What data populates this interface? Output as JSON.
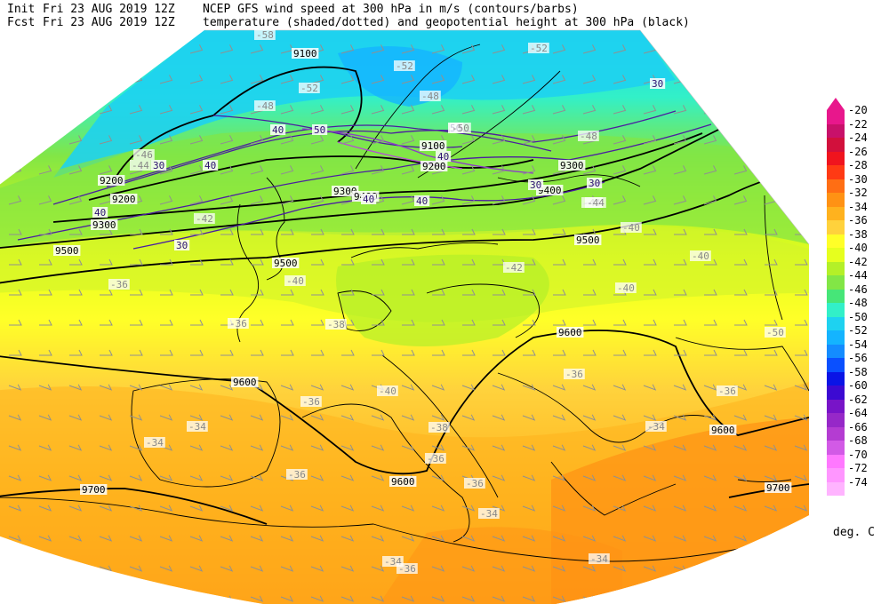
{
  "header": {
    "init_label": "Init",
    "init_time": "Fri 23 AUG 2019 12Z",
    "fcst_label": "Fcst",
    "fcst_time": "Fri 23 AUG 2019 12Z",
    "title_line1": "NCEP GFS wind speed at 300 hPa in m/s (contours/barbs)",
    "title_line2": "temperature (shaded/dotted) and geopotential height at 300 hPa (black)"
  },
  "legend": {
    "units": "deg. C",
    "items": [
      {
        "label": "-20",
        "color": "#e8178c"
      },
      {
        "label": "-22",
        "color": "#c8116a"
      },
      {
        "label": "-24",
        "color": "#d2103c"
      },
      {
        "label": "-26",
        "color": "#f0141e"
      },
      {
        "label": "-28",
        "color": "#ff3a14"
      },
      {
        "label": "-30",
        "color": "#ff6e14"
      },
      {
        "label": "-32",
        "color": "#ff9214"
      },
      {
        "label": "-34",
        "color": "#ffb21e"
      },
      {
        "label": "-36",
        "color": "#ffd23c"
      },
      {
        "label": "-38",
        "color": "#ffff28"
      },
      {
        "label": "-40",
        "color": "#e6ff1e"
      },
      {
        "label": "-42",
        "color": "#b4f028"
      },
      {
        "label": "-44",
        "color": "#82e646"
      },
      {
        "label": "-46",
        "color": "#46e678"
      },
      {
        "label": "-48",
        "color": "#32f0c8"
      },
      {
        "label": "-50",
        "color": "#1ed2f0"
      },
      {
        "label": "-52",
        "color": "#14b4ff"
      },
      {
        "label": "-54",
        "color": "#148cff"
      },
      {
        "label": "-56",
        "color": "#0a50ff"
      },
      {
        "label": "-58",
        "color": "#0a14e6"
      },
      {
        "label": "-60",
        "color": "#3c0ad2"
      },
      {
        "label": "-62",
        "color": "#7814c8"
      },
      {
        "label": "-64",
        "color": "#9628c8"
      },
      {
        "label": "-66",
        "color": "#b43cd2"
      },
      {
        "label": "-68",
        "color": "#d25ae6"
      },
      {
        "label": "-70",
        "color": "#ff78ff"
      },
      {
        "label": "-72",
        "color": "#ff96ff"
      },
      {
        "label": "-74",
        "color": "#ffb4ff"
      }
    ]
  },
  "map": {
    "height_contours": [
      {
        "label": "9100"
      },
      {
        "label": "9200"
      },
      {
        "label": "9300"
      },
      {
        "label": "9400"
      },
      {
        "label": "9500"
      },
      {
        "label": "9600"
      },
      {
        "label": "9700"
      }
    ],
    "height_labels": [
      {
        "text": "9100"
      },
      {
        "text": "9200"
      },
      {
        "text": "9300"
      },
      {
        "text": "9300"
      },
      {
        "text": "9300"
      },
      {
        "text": "9400"
      },
      {
        "text": "9400"
      },
      {
        "text": "9500"
      },
      {
        "text": "9500"
      },
      {
        "text": "9500"
      },
      {
        "text": "9600"
      },
      {
        "text": "9600"
      },
      {
        "text": "9600"
      },
      {
        "text": "9600"
      },
      {
        "text": "9700"
      },
      {
        "text": "9700"
      },
      {
        "text": "9100"
      },
      {
        "text": "9200"
      },
      {
        "text": "9200"
      }
    ],
    "wind_labels": [
      {
        "text": "30"
      },
      {
        "text": "30"
      },
      {
        "text": "40"
      },
      {
        "text": "40"
      },
      {
        "text": "40"
      },
      {
        "text": "50"
      },
      {
        "text": "40"
      },
      {
        "text": "50"
      },
      {
        "text": "40"
      },
      {
        "text": "30"
      },
      {
        "text": "40"
      },
      {
        "text": "30"
      },
      {
        "text": "30"
      }
    ],
    "temp_labels": [
      {
        "text": "-58"
      },
      {
        "text": "-52"
      },
      {
        "text": "-52"
      },
      {
        "text": "-48"
      },
      {
        "text": "-44"
      },
      {
        "text": "-46"
      },
      {
        "text": "-48"
      },
      {
        "text": "-50"
      },
      {
        "text": "-48"
      },
      {
        "text": "-44"
      },
      {
        "text": "-42"
      },
      {
        "text": "-40"
      },
      {
        "text": "-36"
      },
      {
        "text": "-36"
      },
      {
        "text": "-40"
      },
      {
        "text": "-42"
      },
      {
        "text": "-40"
      },
      {
        "text": "-40"
      },
      {
        "text": "-38"
      },
      {
        "text": "-36"
      },
      {
        "text": "-36"
      },
      {
        "text": "-38"
      },
      {
        "text": "-36"
      },
      {
        "text": "-36"
      },
      {
        "text": "-34"
      },
      {
        "text": "-34"
      },
      {
        "text": "-34"
      },
      {
        "text": "-36"
      },
      {
        "text": "-36"
      },
      {
        "text": "-34"
      },
      {
        "text": "-34"
      },
      {
        "text": "-36"
      },
      {
        "text": "-34"
      },
      {
        "text": "-50"
      },
      {
        "text": "-52"
      },
      {
        "text": "-44"
      },
      {
        "text": "-40"
      }
    ]
  }
}
